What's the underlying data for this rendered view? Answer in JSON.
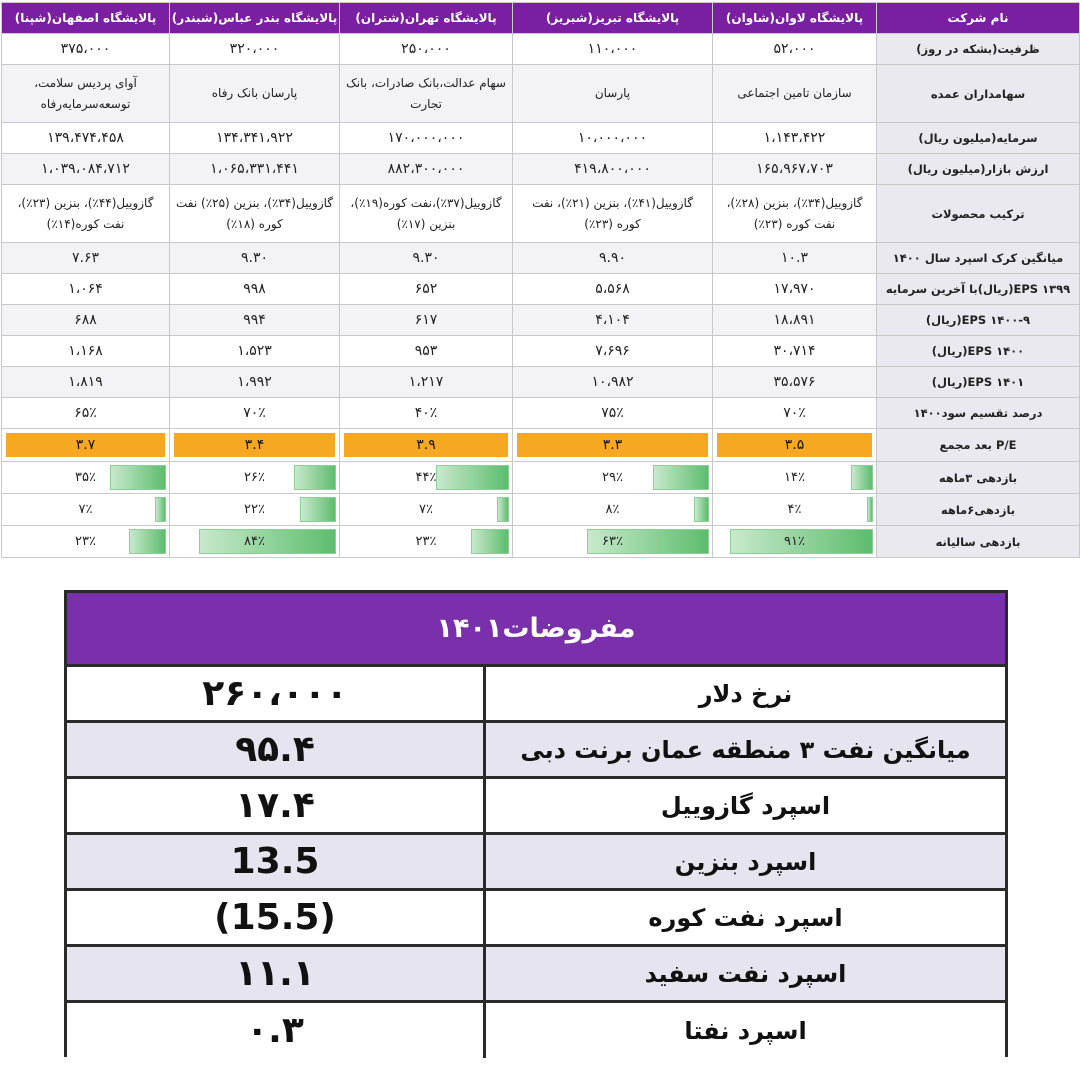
{
  "table": {
    "header_label": "نام شرکت",
    "companies": [
      "پالایشگاه لاوان(شاوان)",
      "پالایشگاه  تبریز(شبریز)",
      "پالایشگاه تهران(شتران)",
      "پالایشگاه بندر عباس(شبندر)",
      "پالایشگاه اصفهان(شپنا)"
    ],
    "rows": [
      {
        "label": "ظرفیت(بشکه در روز)",
        "values": [
          "۵۲،۰۰۰",
          "۱۱۰،۰۰۰",
          "۲۵۰،۰۰۰",
          "۳۲۰،۰۰۰",
          "۳۷۵،۰۰۰"
        ]
      },
      {
        "label": "سهامداران عمده",
        "values": [
          "سازمان تامین اجتماعی",
          "پارسان",
          "سهام عدالت،بانک صادرات، بانک تجارت",
          "پارسان بانک رفاه",
          "آوای پردیس سلامت، توسعه‌سرمایه‌رفاه"
        ]
      },
      {
        "label": "سرمایه(میلیون ریال)",
        "values": [
          "۱،۱۴۳،۴۲۲",
          "۱۰،۰۰۰،۰۰۰",
          "۱۷۰،۰۰۰،۰۰۰",
          "۱۳۴،۳۴۱،۹۲۲",
          "۱۳۹،۴۷۴،۴۵۸"
        ]
      },
      {
        "label": "ارزش بازار(میلیون ریال)",
        "values": [
          "۱۶۵،۹۶۷،۷۰۳",
          "۴۱۹،۸۰۰،۰۰۰",
          "۸۸۲،۳۰۰،۰۰۰",
          "۱،۰۶۵،۳۳۱،۴۴۱",
          "۱،۰۳۹،۰۸۴،۷۱۲"
        ]
      },
      {
        "label": "ترکیب محصولات",
        "values": [
          "گازوییل(۳۴٪)، بنزین (۲۸٪)، نفت کوره (۲۳٪)",
          "گازوییل(۴۱٪)، بنزین (۲۱٪)، نفت کوره (۲۳٪)",
          "گازوییل(۳۷٪)،نفت کوره(۱۹٪)، بنزین (۱۷٪)",
          "گازوییل(۳۴٪)، بنزین (۲۵٪) نفت کوره (۱۸٪)",
          "گازوییل(۴۴٪)، بنزین (۲۳٪)، نفت کوره(۱۴٪)"
        ]
      },
      {
        "label": "میانگین کرک اسپرد سال ۱۴۰۰",
        "values": [
          "۱۰.۳",
          "۹.۹۰",
          "۹.۳۰",
          "۹.۳۰",
          "۷.۶۳"
        ]
      },
      {
        "label": "EPS ۱۳۹۹(ریال)با آخرین سرمایه",
        "values": [
          "۱۷،۹۷۰",
          "۵،۵۶۸",
          "۶۵۲",
          "۹۹۸",
          "۱،۰۶۴"
        ]
      },
      {
        "label": "EPS ۱۴۰۰-۹(ریال)",
        "values": [
          "۱۸،۸۹۱",
          "۴،۱۰۴",
          "۶۱۷",
          "۹۹۴",
          "۶۸۸"
        ]
      },
      {
        "label": "EPS ۱۴۰۰(ریال)",
        "values": [
          "۳۰،۷۱۴",
          "۷،۶۹۶",
          "۹۵۳",
          "۱،۵۲۳",
          "۱،۱۶۸"
        ]
      },
      {
        "label": "EPS ۱۴۰۱(ریال)",
        "values": [
          "۳۵،۵۷۶",
          "۱۰،۹۸۲",
          "۱،۲۱۷",
          "۱،۹۹۲",
          "۱،۸۱۹"
        ]
      },
      {
        "label": "درصد تقسیم سود۱۴۰۰",
        "values": [
          "۷۰٪",
          "۷۵٪",
          "۴۰٪",
          "۷۰٪",
          "۶۵٪"
        ]
      }
    ],
    "pe_row": {
      "label": "P/E بعد مجمع",
      "values": [
        "۳.۵",
        "۳.۳",
        "۳.۹",
        "۳.۴",
        "۳.۷"
      ],
      "color": "#f7a823"
    },
    "return_rows": [
      {
        "label": "بازدهی ۳ماهه",
        "values": [
          "۱۴٪",
          "۲۹٪",
          "۴۴٪",
          "۲۶٪",
          "۳۵٪"
        ],
        "fill": [
          0.14,
          0.29,
          0.44,
          0.26,
          0.35
        ]
      },
      {
        "label": "بازدهی۶ماهه",
        "values": [
          "۴٪",
          "۸٪",
          "۷٪",
          "۲۲٪",
          "۷٪"
        ],
        "fill": [
          0.04,
          0.08,
          0.07,
          0.22,
          0.07
        ]
      },
      {
        "label": "بازدهی سالیانه",
        "values": [
          "۹۱٪",
          "۶۳٪",
          "۲۳٪",
          "۸۴٪",
          "۲۳٪"
        ],
        "fill": [
          0.91,
          0.63,
          0.23,
          0.84,
          0.23
        ]
      }
    ],
    "bar_color": "#5dbd6e"
  },
  "assumptions": {
    "title": "مفروضات۱۴۰۱",
    "header_color": "#7a2fab",
    "rows": [
      {
        "label": "نرخ دلار",
        "value": "۲۶۰،۰۰۰"
      },
      {
        "label": "میانگین نفت ۳ منطقه عمان برنت دبی",
        "value": "۹۵.۴"
      },
      {
        "label": "اسپرد گازوییل",
        "value": "۱۷.۴"
      },
      {
        "label": "اسپرد بنزین",
        "value": "13.5"
      },
      {
        "label": "اسپرد نفت کوره",
        "value": "(15.5)"
      },
      {
        "label": "اسپرد نفت سفید",
        "value": "۱۱.۱"
      },
      {
        "label": "اسپرد نفتا",
        "value": "۰.۳"
      }
    ]
  }
}
